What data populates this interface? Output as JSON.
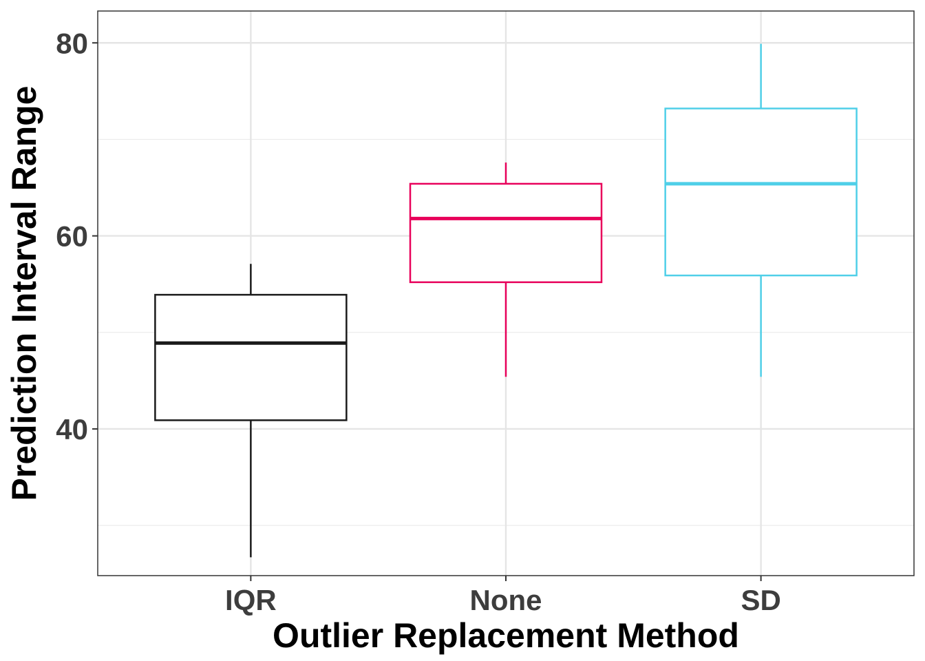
{
  "chart_data": {
    "type": "box",
    "xlabel": "Outlier Replacement Method",
    "ylabel": "Prediction Interval Range",
    "categories": [
      "IQR",
      "None",
      "SD"
    ],
    "ylim": [
      24.8,
      83.3
    ],
    "y_ticks": [
      40,
      60,
      80
    ],
    "y_minor_ticks": [
      30,
      50,
      70
    ],
    "grid": true,
    "legend": "none",
    "boxes": [
      {
        "category": "IQR",
        "color": "#1a1a1a",
        "whisker_low": 26.7,
        "q1": 40.9,
        "median": 48.9,
        "q3": 53.9,
        "whisker_high": 57.1
      },
      {
        "category": "None",
        "color": "#e8005a",
        "whisker_low": 45.4,
        "q1": 55.2,
        "median": 61.8,
        "q3": 65.4,
        "whisker_high": 67.6
      },
      {
        "category": "SD",
        "color": "#4fcfe8",
        "whisker_low": 45.4,
        "q1": 55.9,
        "median": 65.4,
        "q3": 73.2,
        "whisker_high": 79.9
      }
    ]
  }
}
